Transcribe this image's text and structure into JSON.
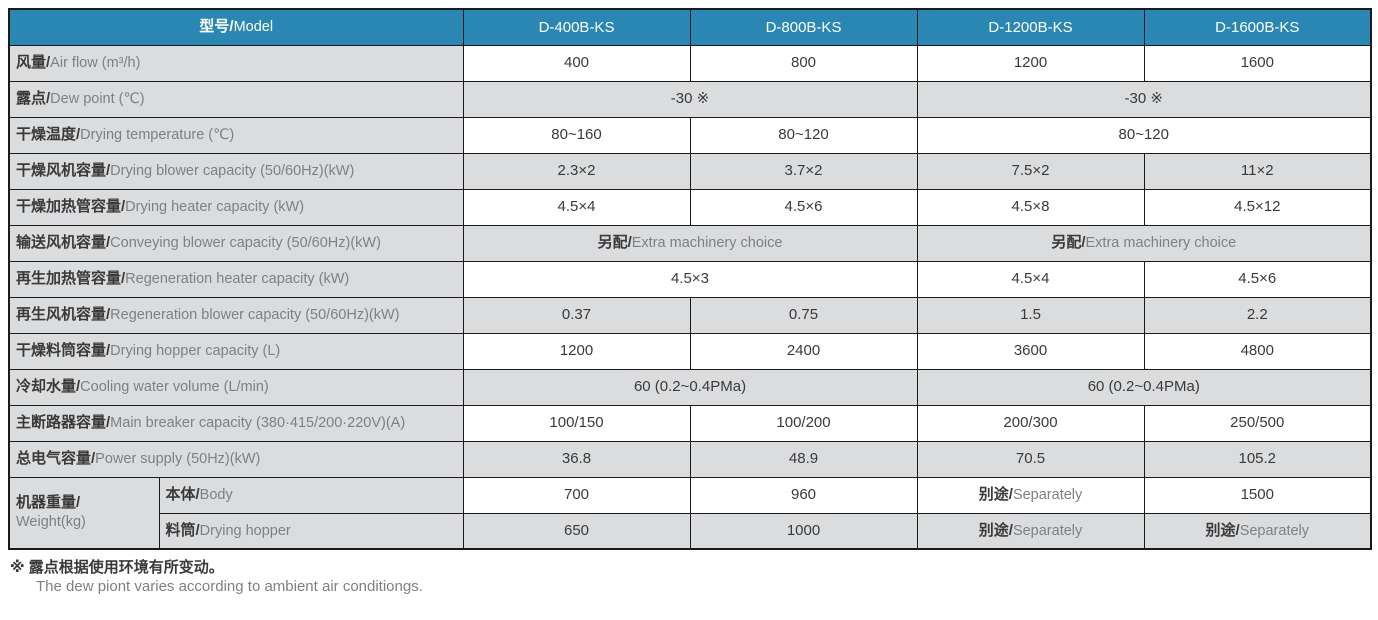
{
  "colors": {
    "header_bg": "#2A87B3",
    "row_gray": "#DBDCDD",
    "row_white": "#FFFFFF",
    "border": "#1A1A1A",
    "text_dark": "#3A3A3B",
    "text_gray": "#7E8083"
  },
  "table": {
    "header": {
      "label_zh": "型号/",
      "label_en": "Model",
      "models": [
        "D-400B-KS",
        "D-800B-KS",
        "D-1200B-KS",
        "D-1600B-KS"
      ]
    },
    "rows": [
      {
        "shade": "white",
        "cells": [
          {
            "kind": "label",
            "colspan": 2,
            "zh": "风量/",
            "en": "Air flow (m³/h)"
          },
          {
            "kind": "data",
            "text": "400"
          },
          {
            "kind": "data",
            "text": "800"
          },
          {
            "kind": "data",
            "text": "1200"
          },
          {
            "kind": "data",
            "text": "1600"
          }
        ]
      },
      {
        "shade": "gray",
        "cells": [
          {
            "kind": "label",
            "colspan": 2,
            "zh": "露点/",
            "en": "Dew point (℃)"
          },
          {
            "kind": "data",
            "colspan": 2,
            "text": "-30 ※"
          },
          {
            "kind": "data",
            "colspan": 2,
            "text": "-30 ※"
          }
        ]
      },
      {
        "shade": "white",
        "cells": [
          {
            "kind": "label",
            "colspan": 2,
            "zh": "干燥温度/",
            "en": "Drying temperature (℃)"
          },
          {
            "kind": "data",
            "text": "80~160"
          },
          {
            "kind": "data",
            "text": "80~120"
          },
          {
            "kind": "data",
            "colspan": 2,
            "text": "80~120"
          }
        ]
      },
      {
        "shade": "gray",
        "cells": [
          {
            "kind": "label",
            "colspan": 2,
            "zh": "干燥风机容量/",
            "en": "Drying blower capacity (50/60Hz)(kW)"
          },
          {
            "kind": "data",
            "text": "2.3×2"
          },
          {
            "kind": "data",
            "text": "3.7×2"
          },
          {
            "kind": "data",
            "text": "7.5×2"
          },
          {
            "kind": "data",
            "text": "11×2"
          }
        ]
      },
      {
        "shade": "white",
        "cells": [
          {
            "kind": "label",
            "colspan": 2,
            "zh": "干燥加热管容量/",
            "en": "Drying heater capacity (kW)"
          },
          {
            "kind": "data",
            "text": "4.5×4"
          },
          {
            "kind": "data",
            "text": "4.5×6"
          },
          {
            "kind": "data",
            "text": "4.5×8"
          },
          {
            "kind": "data",
            "text": "4.5×12"
          }
        ]
      },
      {
        "shade": "gray",
        "cells": [
          {
            "kind": "label",
            "colspan": 2,
            "zh": "输送风机容量/",
            "en": "Conveying blower capacity (50/60Hz)(kW)"
          },
          {
            "kind": "data",
            "colspan": 2,
            "zh": "另配/",
            "en": "Extra machinery choice"
          },
          {
            "kind": "data",
            "colspan": 2,
            "zh": "另配/",
            "en": "Extra machinery choice"
          }
        ]
      },
      {
        "shade": "white",
        "cells": [
          {
            "kind": "label",
            "colspan": 2,
            "zh": "再生加热管容量/",
            "en": "Regeneration heater capacity (kW)"
          },
          {
            "kind": "data",
            "colspan": 2,
            "text": "4.5×3"
          },
          {
            "kind": "data",
            "text": "4.5×4"
          },
          {
            "kind": "data",
            "text": "4.5×6"
          }
        ]
      },
      {
        "shade": "gray",
        "cells": [
          {
            "kind": "label",
            "colspan": 2,
            "zh": "再生风机容量/",
            "en": "Regeneration blower capacity (50/60Hz)(kW)"
          },
          {
            "kind": "data",
            "text": "0.37"
          },
          {
            "kind": "data",
            "text": "0.75"
          },
          {
            "kind": "data",
            "text": "1.5"
          },
          {
            "kind": "data",
            "text": "2.2"
          }
        ]
      },
      {
        "shade": "white",
        "cells": [
          {
            "kind": "label",
            "colspan": 2,
            "zh": "干燥料筒容量/",
            "en": "Drying hopper capacity (L)"
          },
          {
            "kind": "data",
            "text": "1200"
          },
          {
            "kind": "data",
            "text": "2400"
          },
          {
            "kind": "data",
            "text": "3600"
          },
          {
            "kind": "data",
            "text": "4800"
          }
        ]
      },
      {
        "shade": "gray",
        "cells": [
          {
            "kind": "label",
            "colspan": 2,
            "zh": "冷却水量/",
            "en": "Cooling water volume (L/min)"
          },
          {
            "kind": "data",
            "colspan": 2,
            "text": "60 (0.2~0.4PMa)"
          },
          {
            "kind": "data",
            "colspan": 2,
            "text": "60 (0.2~0.4PMa)"
          }
        ]
      },
      {
        "shade": "white",
        "cells": [
          {
            "kind": "label",
            "colspan": 2,
            "zh": "主断路器容量/",
            "en": "Main breaker capacity (380·415/200·220V)(A)"
          },
          {
            "kind": "data",
            "text": "100/150"
          },
          {
            "kind": "data",
            "text": "100/200"
          },
          {
            "kind": "data",
            "text": "200/300"
          },
          {
            "kind": "data",
            "text": "250/500"
          }
        ]
      },
      {
        "shade": "gray",
        "cells": [
          {
            "kind": "label",
            "colspan": 2,
            "zh": "总电气容量/",
            "en": "Power supply (50Hz)(kW)"
          },
          {
            "kind": "data",
            "text": "36.8"
          },
          {
            "kind": "data",
            "text": "48.9"
          },
          {
            "kind": "data",
            "text": "70.5"
          },
          {
            "kind": "data",
            "text": "105.2"
          }
        ]
      },
      {
        "shade": "white",
        "cells": [
          {
            "kind": "label",
            "rowspan": 2,
            "stacked": true,
            "zh": "机器重量/",
            "en": "Weight(kg)"
          },
          {
            "kind": "label",
            "zh": "本体/",
            "en": "Body"
          },
          {
            "kind": "data",
            "text": "700"
          },
          {
            "kind": "data",
            "text": "960"
          },
          {
            "kind": "data",
            "zh": "别途/",
            "en": "Separately"
          },
          {
            "kind": "data",
            "text": "1500"
          }
        ]
      },
      {
        "shade": "gray",
        "cells": [
          {
            "kind": "label",
            "zh": "料筒/",
            "en": "Drying hopper"
          },
          {
            "kind": "data",
            "text": "650"
          },
          {
            "kind": "data",
            "text": "1000"
          },
          {
            "kind": "data",
            "zh": "别途/",
            "en": "Separately"
          },
          {
            "kind": "data",
            "zh": "别途/",
            "en": "Separately"
          }
        ]
      }
    ]
  },
  "footnote": {
    "line1": "※ 露点根据使用环境有所变动。",
    "line2": "The dew piont varies according to ambient air conditiongs."
  }
}
